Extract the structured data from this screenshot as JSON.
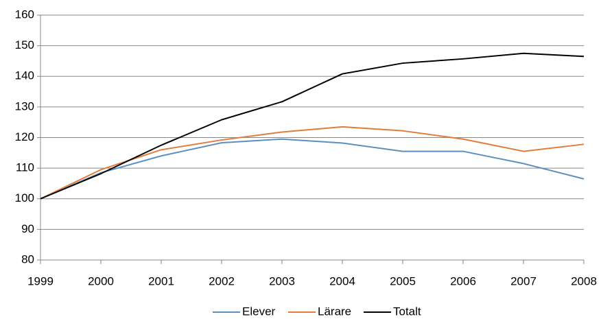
{
  "chart_data": {
    "type": "line",
    "x": [
      1999,
      2000,
      2001,
      2002,
      2003,
      2004,
      2005,
      2006,
      2007,
      2008
    ],
    "series": [
      {
        "name": "Elever",
        "color": "#5b8fc0",
        "values": [
          100,
          108.5,
          114,
          118.3,
          119.5,
          118.2,
          115.5,
          115.5,
          111.5,
          106.5
        ]
      },
      {
        "name": "Lärare",
        "color": "#e07d3a",
        "values": [
          100,
          109.5,
          116,
          119.2,
          121.8,
          123.5,
          122.2,
          119.5,
          115.5,
          117.8
        ]
      },
      {
        "name": "Totalt",
        "color": "#000000",
        "values": [
          100,
          108.2,
          117.5,
          125.8,
          131.7,
          140.8,
          144.3,
          145.7,
          147.5,
          146.5
        ]
      }
    ],
    "xlim": [
      1999,
      2008
    ],
    "xticks": [
      1999,
      2000,
      2001,
      2002,
      2003,
      2004,
      2005,
      2006,
      2007,
      2008
    ],
    "ylim": [
      80,
      160
    ],
    "yticks": [
      80,
      90,
      100,
      110,
      120,
      130,
      140,
      150,
      160
    ],
    "grid": true,
    "legend": "bottom"
  }
}
